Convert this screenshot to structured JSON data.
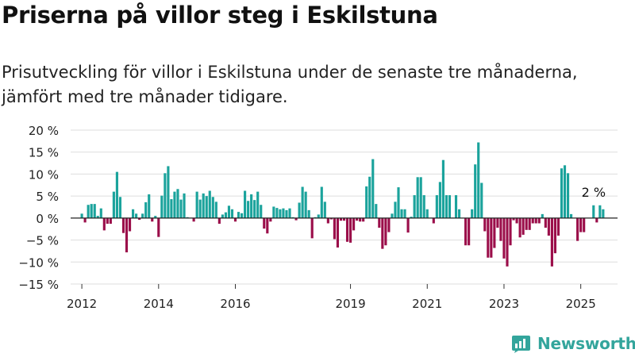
{
  "title": "Priserna på villor steg i Eskilstuna",
  "subtitle": "Prisutveckling för villor i Eskilstuna under de senaste tre månaderna, jämfört med tre månader tidigare.",
  "brand": {
    "name": "Newsworthy",
    "icon": "newsworthy-logo-icon",
    "color": "#33a59c"
  },
  "colors": {
    "positive": "#1ba39c",
    "negative": "#9b0e4a",
    "grid": "#dddddd",
    "zero_line": "#222222"
  },
  "chart_data": {
    "type": "bar",
    "title": "Priserna på villor steg i Eskilstuna",
    "xlabel": "",
    "ylabel": "",
    "unit": "%",
    "ylim": [
      -15,
      20
    ],
    "yticks": [
      {
        "value": 20,
        "label": "20 %"
      },
      {
        "value": 15,
        "label": "15 %"
      },
      {
        "value": 10,
        "label": "10 %"
      },
      {
        "value": 5,
        "label": "5 %"
      },
      {
        "value": 0,
        "label": "0 %"
      },
      {
        "value": -5,
        "label": "−5 %"
      },
      {
        "value": -10,
        "label": "−10 %"
      },
      {
        "value": -15,
        "label": "−15 %"
      }
    ],
    "xlim": [
      "2011-10",
      "2026-01"
    ],
    "xticks": [
      {
        "value": "2012-01",
        "label": "2012"
      },
      {
        "value": "2014-01",
        "label": "2014"
      },
      {
        "value": "2016-01",
        "label": "2016"
      },
      {
        "value": "2019-01",
        "label": "2019"
      },
      {
        "value": "2021-01",
        "label": "2021"
      },
      {
        "value": "2023-01",
        "label": "2023"
      },
      {
        "value": "2025-01",
        "label": "2025"
      }
    ],
    "grid": true,
    "annotation": {
      "month": "2025-06",
      "text": "2 %"
    },
    "series": [
      {
        "values": [
          [
            "2012-01",
            1
          ],
          [
            "2012-02",
            -1
          ],
          [
            "2012-03",
            3
          ],
          [
            "2012-04",
            3.2
          ],
          [
            "2012-05",
            3.2
          ],
          [
            "2012-06",
            0.5
          ],
          [
            "2012-07",
            2.2
          ],
          [
            "2012-08",
            -2.8
          ],
          [
            "2012-09",
            -1.3
          ],
          [
            "2012-10",
            -1.3
          ],
          [
            "2012-11",
            6
          ],
          [
            "2012-12",
            10.5
          ],
          [
            "2013-01",
            4.8
          ],
          [
            "2013-02",
            -3.4
          ],
          [
            "2013-03",
            -7.8
          ],
          [
            "2013-04",
            -3
          ],
          [
            "2013-05",
            2
          ],
          [
            "2013-06",
            1
          ],
          [
            "2013-07",
            -0.4
          ],
          [
            "2013-08",
            1
          ],
          [
            "2013-09",
            3.6
          ],
          [
            "2013-10",
            5.4
          ],
          [
            "2013-11",
            -0.8
          ],
          [
            "2013-12",
            0.5
          ],
          [
            "2014-01",
            -4.3
          ],
          [
            "2014-02",
            5.1
          ],
          [
            "2014-03",
            10.2
          ],
          [
            "2014-04",
            11.8
          ],
          [
            "2014-05",
            4.3
          ],
          [
            "2014-06",
            6
          ],
          [
            "2014-07",
            6.6
          ],
          [
            "2014-08",
            4.2
          ],
          [
            "2014-09",
            5.6
          ],
          [
            "2014-10",
            0.2
          ],
          [
            "2014-11",
            0
          ],
          [
            "2014-12",
            -0.8
          ],
          [
            "2015-01",
            6
          ],
          [
            "2015-02",
            4.2
          ],
          [
            "2015-03",
            5.6
          ],
          [
            "2015-04",
            5
          ],
          [
            "2015-05",
            6.2
          ],
          [
            "2015-06",
            4.8
          ],
          [
            "2015-07",
            3.7
          ],
          [
            "2015-08",
            -1.3
          ],
          [
            "2015-09",
            0.8
          ],
          [
            "2015-10",
            1.3
          ],
          [
            "2015-11",
            2.8
          ],
          [
            "2015-12",
            2
          ],
          [
            "2016-01",
            -0.8
          ],
          [
            "2016-02",
            1.4
          ],
          [
            "2016-03",
            1.1
          ],
          [
            "2016-04",
            6.2
          ],
          [
            "2016-05",
            3.9
          ],
          [
            "2016-06",
            5.4
          ],
          [
            "2016-07",
            4.1
          ],
          [
            "2016-08",
            6
          ],
          [
            "2016-09",
            3
          ],
          [
            "2016-10",
            -2.4
          ],
          [
            "2016-11",
            -3.5
          ],
          [
            "2016-12",
            -0.8
          ],
          [
            "2017-01",
            2.6
          ],
          [
            "2017-02",
            2.3
          ],
          [
            "2017-03",
            2
          ],
          [
            "2017-04",
            2.2
          ],
          [
            "2017-05",
            1.8
          ],
          [
            "2017-06",
            2.2
          ],
          [
            "2017-07",
            0.2
          ],
          [
            "2017-08",
            -0.5
          ],
          [
            "2017-09",
            3.5
          ],
          [
            "2017-10",
            7.1
          ],
          [
            "2017-11",
            6
          ],
          [
            "2017-12",
            1.8
          ],
          [
            "2018-01",
            -4.6
          ],
          [
            "2018-02",
            0.2
          ],
          [
            "2018-03",
            0.8
          ],
          [
            "2018-04",
            7.1
          ],
          [
            "2018-05",
            3.7
          ],
          [
            "2018-06",
            -1.2
          ],
          [
            "2018-07",
            -0.3
          ],
          [
            "2018-08",
            -4.8
          ],
          [
            "2018-09",
            -6.7
          ],
          [
            "2018-10",
            -0.6
          ],
          [
            "2018-11",
            -0.6
          ],
          [
            "2018-12",
            -5.4
          ],
          [
            "2019-01",
            -5.6
          ],
          [
            "2019-02",
            -2.8
          ],
          [
            "2019-03",
            -0.6
          ],
          [
            "2019-04",
            -0.8
          ],
          [
            "2019-05",
            -0.8
          ],
          [
            "2019-06",
            7.2
          ],
          [
            "2019-07",
            9.4
          ],
          [
            "2019-08",
            13.4
          ],
          [
            "2019-09",
            3.2
          ],
          [
            "2019-10",
            -2.2
          ],
          [
            "2019-11",
            -7
          ],
          [
            "2019-12",
            -6.2
          ],
          [
            "2020-01",
            -3.2
          ],
          [
            "2020-02",
            1
          ],
          [
            "2020-03",
            3.7
          ],
          [
            "2020-04",
            7
          ],
          [
            "2020-05",
            2
          ],
          [
            "2020-06",
            2
          ],
          [
            "2020-07",
            -3.3
          ],
          [
            "2020-08",
            0.3
          ],
          [
            "2020-09",
            5.2
          ],
          [
            "2020-10",
            9.3
          ],
          [
            "2020-11",
            9.3
          ],
          [
            "2020-12",
            5.2
          ],
          [
            "2021-01",
            2
          ],
          [
            "2021-02",
            0
          ],
          [
            "2021-03",
            -1.2
          ],
          [
            "2021-04",
            5.2
          ],
          [
            "2021-05",
            8.2
          ],
          [
            "2021-06",
            13.2
          ],
          [
            "2021-07",
            5.2
          ],
          [
            "2021-08",
            5.2
          ],
          [
            "2021-09",
            0.1
          ],
          [
            "2021-10",
            5.2
          ],
          [
            "2021-11",
            2
          ],
          [
            "2021-12",
            0
          ],
          [
            "2022-01",
            -6.2
          ],
          [
            "2022-02",
            -6.2
          ],
          [
            "2022-03",
            2
          ],
          [
            "2022-04",
            12.2
          ],
          [
            "2022-05",
            17.2
          ],
          [
            "2022-06",
            8
          ],
          [
            "2022-07",
            -3
          ],
          [
            "2022-08",
            -9
          ],
          [
            "2022-09",
            -9
          ],
          [
            "2022-10",
            -6.8
          ],
          [
            "2022-11",
            -2.2
          ],
          [
            "2022-12",
            -5.2
          ],
          [
            "2023-01",
            -9.2
          ],
          [
            "2023-02",
            -11
          ],
          [
            "2023-03",
            -6.2
          ],
          [
            "2023-04",
            -0.5
          ],
          [
            "2023-05",
            -1.2
          ],
          [
            "2023-06",
            -4.4
          ],
          [
            "2023-07",
            -3.8
          ],
          [
            "2023-08",
            -2.7
          ],
          [
            "2023-09",
            -2.7
          ],
          [
            "2023-10",
            -1.2
          ],
          [
            "2023-11",
            -1.2
          ],
          [
            "2023-12",
            -1.2
          ],
          [
            "2024-01",
            0.9
          ],
          [
            "2024-02",
            -2.2
          ],
          [
            "2024-03",
            -4
          ],
          [
            "2024-04",
            -11
          ],
          [
            "2024-05",
            -8
          ],
          [
            "2024-06",
            -4
          ],
          [
            "2024-07",
            11.3
          ],
          [
            "2024-08",
            12
          ],
          [
            "2024-09",
            10.2
          ],
          [
            "2024-10",
            0.9
          ],
          [
            "2024-11",
            0
          ],
          [
            "2024-12",
            -5.2
          ],
          [
            "2025-01",
            -3.2
          ],
          [
            "2025-02",
            -3.2
          ],
          [
            "2025-03",
            0
          ],
          [
            "2025-04",
            0
          ],
          [
            "2025-05",
            2.9
          ],
          [
            "2025-06",
            -1
          ],
          [
            "2025-07",
            2.9
          ],
          [
            "2025-08",
            2
          ]
        ]
      }
    ]
  }
}
